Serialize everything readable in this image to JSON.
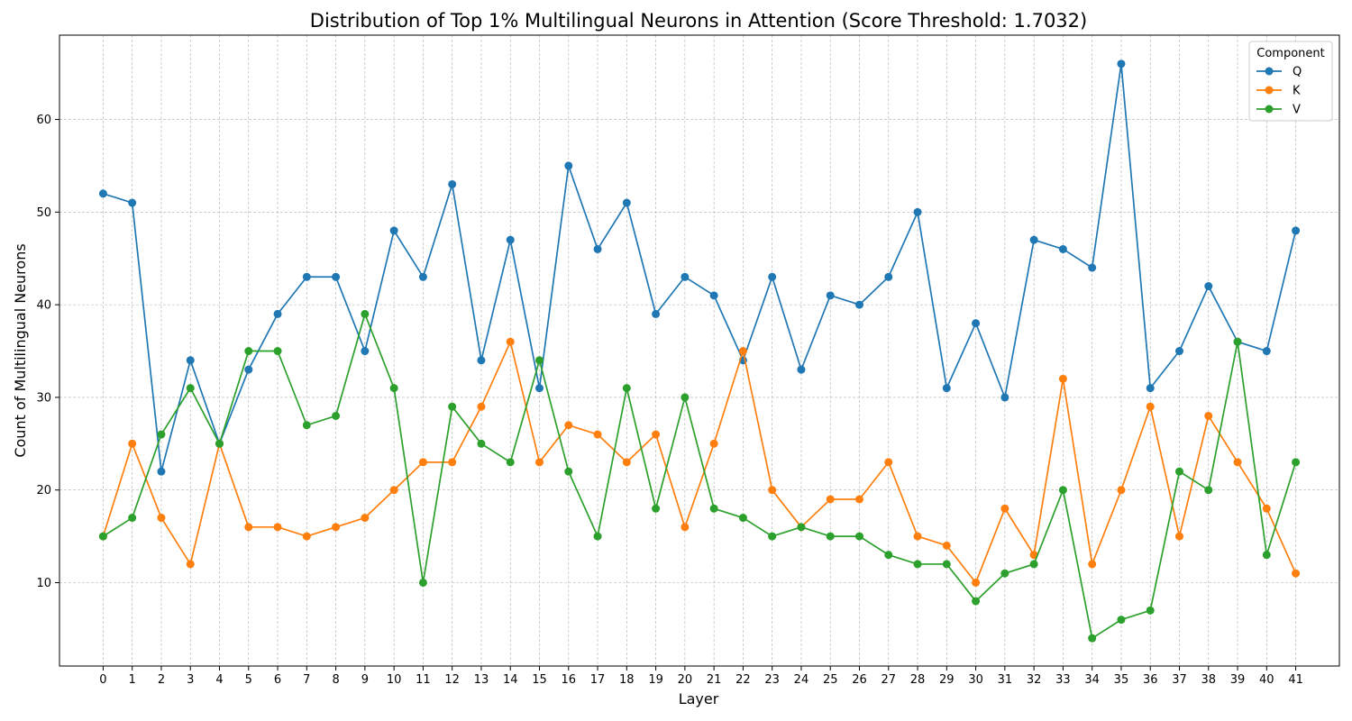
{
  "chart_data": {
    "type": "line",
    "title": "Distribution of Top 1% Multilingual Neurons in Attention (Score Threshold: 1.7032)",
    "xlabel": "Layer",
    "ylabel": "Count of Multilingual Neurons",
    "x": [
      0,
      1,
      2,
      3,
      4,
      5,
      6,
      7,
      8,
      9,
      10,
      11,
      12,
      13,
      14,
      15,
      16,
      17,
      18,
      19,
      20,
      21,
      22,
      23,
      24,
      25,
      26,
      27,
      28,
      29,
      30,
      31,
      32,
      33,
      34,
      35,
      36,
      37,
      38,
      39,
      40,
      41
    ],
    "xlim": [
      -1.5,
      42.5
    ],
    "ylim": [
      1,
      69.1
    ],
    "yticks": [
      10,
      20,
      30,
      40,
      50,
      60
    ],
    "grid": true,
    "legend": {
      "title": "Component",
      "position": "top-right"
    },
    "series": [
      {
        "name": "Q",
        "color": "#1f77b4",
        "values": [
          52,
          51,
          22,
          34,
          25,
          33,
          39,
          43,
          43,
          35,
          48,
          43,
          53,
          34,
          47,
          31,
          55,
          46,
          51,
          39,
          43,
          41,
          34,
          43,
          33,
          41,
          40,
          43,
          50,
          31,
          38,
          30,
          47,
          46,
          44,
          66,
          31,
          35,
          42,
          36,
          35,
          48
        ]
      },
      {
        "name": "K",
        "color": "#ff7f0e",
        "values": [
          15,
          25,
          17,
          12,
          25,
          16,
          16,
          15,
          16,
          17,
          20,
          23,
          23,
          29,
          36,
          23,
          27,
          26,
          23,
          26,
          16,
          25,
          35,
          20,
          16,
          19,
          19,
          23,
          15,
          14,
          10,
          18,
          13,
          32,
          12,
          20,
          29,
          15,
          28,
          23,
          18,
          11
        ]
      },
      {
        "name": "V",
        "color": "#2ca02c",
        "values": [
          15,
          17,
          26,
          31,
          25,
          35,
          35,
          27,
          28,
          39,
          31,
          10,
          29,
          25,
          23,
          34,
          22,
          15,
          31,
          18,
          30,
          18,
          17,
          15,
          16,
          15,
          15,
          13,
          12,
          12,
          8,
          11,
          12,
          20,
          4,
          6,
          7,
          22,
          20,
          36,
          13,
          23
        ]
      }
    ]
  }
}
